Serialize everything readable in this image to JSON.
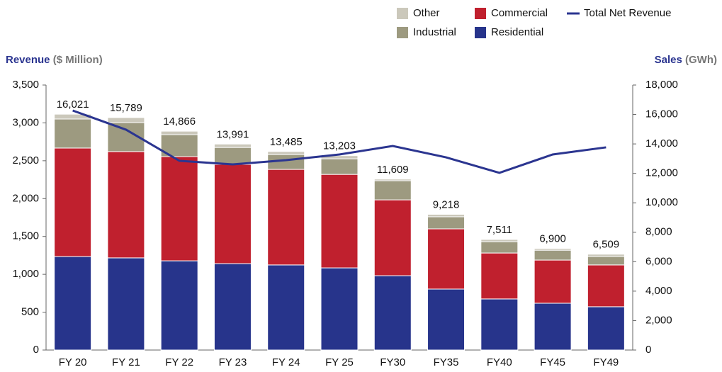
{
  "chart_data": {
    "type": "bar",
    "y_label": "Revenue",
    "y_label_unit": "($ Million)",
    "y2_label": "Sales",
    "y2_label_unit": "(GWh)",
    "categories": [
      "FY 20",
      "FY 21",
      "FY 22",
      "FY 23",
      "FY 24",
      "FY 25",
      "FY30",
      "FY35",
      "FY40",
      "FY45",
      "FY49"
    ],
    "series": [
      {
        "name": "Residential",
        "color": "#27348b",
        "axis": "y2",
        "values": [
          6350,
          6260,
          6060,
          5870,
          5780,
          5580,
          5050,
          4140,
          3470,
          3180,
          2940
        ]
      },
      {
        "name": "Commercial",
        "color": "#c0202e",
        "axis": "y2",
        "values": [
          7370,
          7220,
          7080,
          6740,
          6490,
          6350,
          5150,
          4090,
          3120,
          2930,
          2840
        ]
      },
      {
        "name": "Industrial",
        "color": "#9d9a80",
        "axis": "y2",
        "values": [
          1970,
          1970,
          1490,
          1150,
          1010,
          1060,
          1300,
          820,
          770,
          670,
          580
        ]
      },
      {
        "name": "Other",
        "color": "#cbc8bb",
        "axis": "y2",
        "values": [
          330,
          340,
          236,
          231,
          205,
          213,
          109,
          168,
          151,
          120,
          149
        ]
      },
      {
        "name": "Total Net Revenue",
        "color": "#2b3590",
        "type": "line",
        "axis": "y",
        "values": [
          3163,
          2910,
          2499,
          2452,
          2508,
          2583,
          2695,
          2545,
          2340,
          2583,
          2677
        ]
      }
    ],
    "totals": [
      16021,
      15789,
      14866,
      13991,
      13485,
      13203,
      11609,
      9218,
      7511,
      6900,
      6509
    ],
    "total_labels": [
      "16,021",
      "15,789",
      "14,866",
      "13,991",
      "13,485",
      "13,203",
      "11,609",
      "9,218",
      "7,511",
      "6,900",
      "6,509"
    ],
    "ylim": [
      0,
      3500
    ],
    "yticks": [
      0,
      500,
      {
        "value": 1000,
        "label": "1,000"
      },
      {
        "value": 1500,
        "label": "1,500"
      },
      {
        "value": 2000,
        "label": "2,000"
      },
      {
        "value": 2500,
        "label": "2,500"
      },
      {
        "value": 3000,
        "label": "3,000"
      },
      {
        "value": 3500,
        "label": "3,500"
      }
    ],
    "y2lim": [
      0,
      18000
    ],
    "y2ticks": [
      0,
      {
        "value": 2000,
        "label": "2,000"
      },
      {
        "value": 4000,
        "label": "4,000"
      },
      {
        "value": 6000,
        "label": "6,000"
      },
      {
        "value": 8000,
        "label": "8,000"
      },
      {
        "value": 10000,
        "label": "10,000"
      },
      {
        "value": 12000,
        "label": "12,000"
      },
      {
        "value": 14000,
        "label": "14,000"
      },
      {
        "value": 16000,
        "label": "16,000"
      },
      {
        "value": 18000,
        "label": "18,000"
      }
    ],
    "grid": false,
    "legend": "top-right"
  }
}
